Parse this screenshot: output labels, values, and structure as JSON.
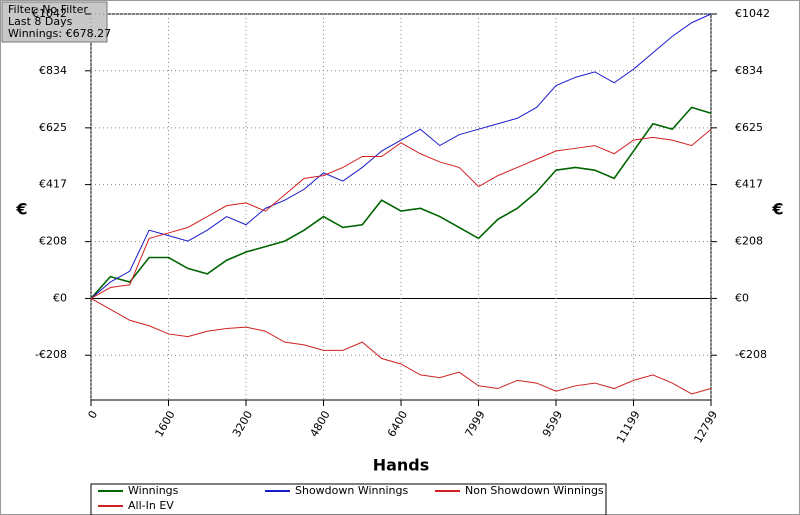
{
  "chart_data": {
    "type": "line",
    "annotations": [
      "Filter: No Filter",
      "Last  8 Days",
      "Winnings: €678.27"
    ],
    "y_label": "€",
    "y2_label": "€",
    "x_label": "Hands",
    "x": [
      0,
      400,
      800,
      1200,
      1600,
      2000,
      2400,
      2800,
      3200,
      3600,
      4000,
      4400,
      4800,
      5200,
      5600,
      6000,
      6400,
      6800,
      7200,
      7600,
      8000,
      8400,
      8800,
      9200,
      9600,
      10000,
      10400,
      10800,
      11200,
      11600,
      12000,
      12400,
      12799
    ],
    "series": [
      {
        "name": "Winnings",
        "color": "#006400",
        "values": [
          0,
          80,
          60,
          150,
          150,
          110,
          90,
          140,
          170,
          190,
          210,
          250,
          300,
          260,
          270,
          360,
          320,
          330,
          300,
          260,
          220,
          290,
          330,
          390,
          470,
          480,
          470,
          440,
          540,
          640,
          620,
          700,
          678.27
        ]
      },
      {
        "name": "Showdown Winnings",
        "color": "#1a1acd",
        "values": [
          0,
          60,
          100,
          250,
          230,
          210,
          250,
          300,
          270,
          330,
          360,
          400,
          460,
          430,
          480,
          540,
          580,
          620,
          560,
          600,
          620,
          640,
          660,
          700,
          780,
          810,
          830,
          790,
          840,
          900,
          960,
          1010,
          1042
        ]
      },
      {
        "name": "Non Showdown Winnings",
        "color": "#d42020",
        "values": [
          0,
          40,
          50,
          220,
          240,
          260,
          300,
          340,
          350,
          320,
          380,
          440,
          450,
          480,
          520,
          520,
          570,
          530,
          500,
          480,
          410,
          450,
          480,
          510,
          540,
          550,
          560,
          530,
          580,
          590,
          580,
          560,
          620
        ]
      },
      {
        "name": "All-In EV",
        "color": "#cc2222",
        "values": [
          0,
          -40,
          -80,
          -100,
          -130,
          -140,
          -120,
          -110,
          -105,
          -120,
          -160,
          -170,
          -190,
          -190,
          -160,
          -220,
          -240,
          -280,
          -290,
          -270,
          -320,
          -330,
          -300,
          -310,
          -340,
          -320,
          -310,
          -330,
          -300,
          -280,
          -310,
          -350,
          -330
        ]
      }
    ],
    "xlim": [
      0,
      12799
    ],
    "xticks": [
      0,
      1600,
      3200,
      4800,
      6400,
      7999,
      9599,
      11199,
      12799
    ],
    "ylim": [
      -372,
      1042
    ],
    "yticks": [
      {
        "value": -208,
        "label": "-€208"
      },
      {
        "value": 0,
        "label": "€0"
      },
      {
        "value": 208,
        "label": "€208"
      },
      {
        "value": 417,
        "label": "€417"
      },
      {
        "value": 625,
        "label": "€625"
      },
      {
        "value": 834,
        "label": "€834"
      },
      {
        "value": 1042,
        "label": "€1042"
      }
    ],
    "grid": true,
    "legend_position": "bottom"
  }
}
